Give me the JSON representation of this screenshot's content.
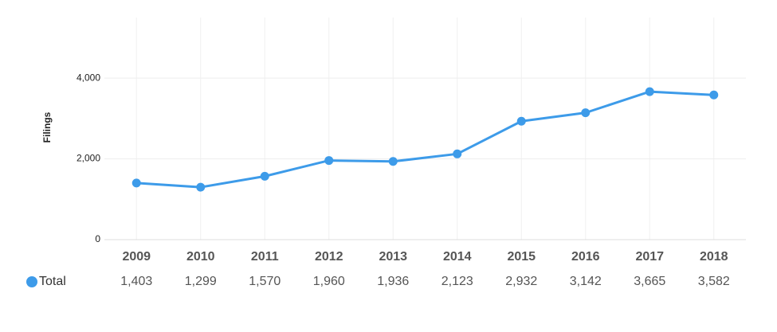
{
  "chart_data": {
    "type": "line",
    "y_label": "Filings",
    "categories": [
      "2009",
      "2010",
      "2011",
      "2012",
      "2013",
      "2014",
      "2015",
      "2016",
      "2017",
      "2018"
    ],
    "series": [
      {
        "name": "Total",
        "color": "#3d9be9",
        "values": [
          1403,
          1299,
          1570,
          1960,
          1936,
          2123,
          2932,
          3142,
          3665,
          3582
        ],
        "value_labels": [
          "1,403",
          "1,299",
          "1,570",
          "1,960",
          "1,936",
          "2,123",
          "2,932",
          "3,142",
          "3,665",
          "3,582"
        ]
      }
    ],
    "ylim": [
      0,
      5500
    ],
    "yticks": [
      0,
      {
        "value": 2000,
        "label": "2,000"
      },
      {
        "value": 4000,
        "label": "4,000"
      }
    ],
    "grid": true
  }
}
